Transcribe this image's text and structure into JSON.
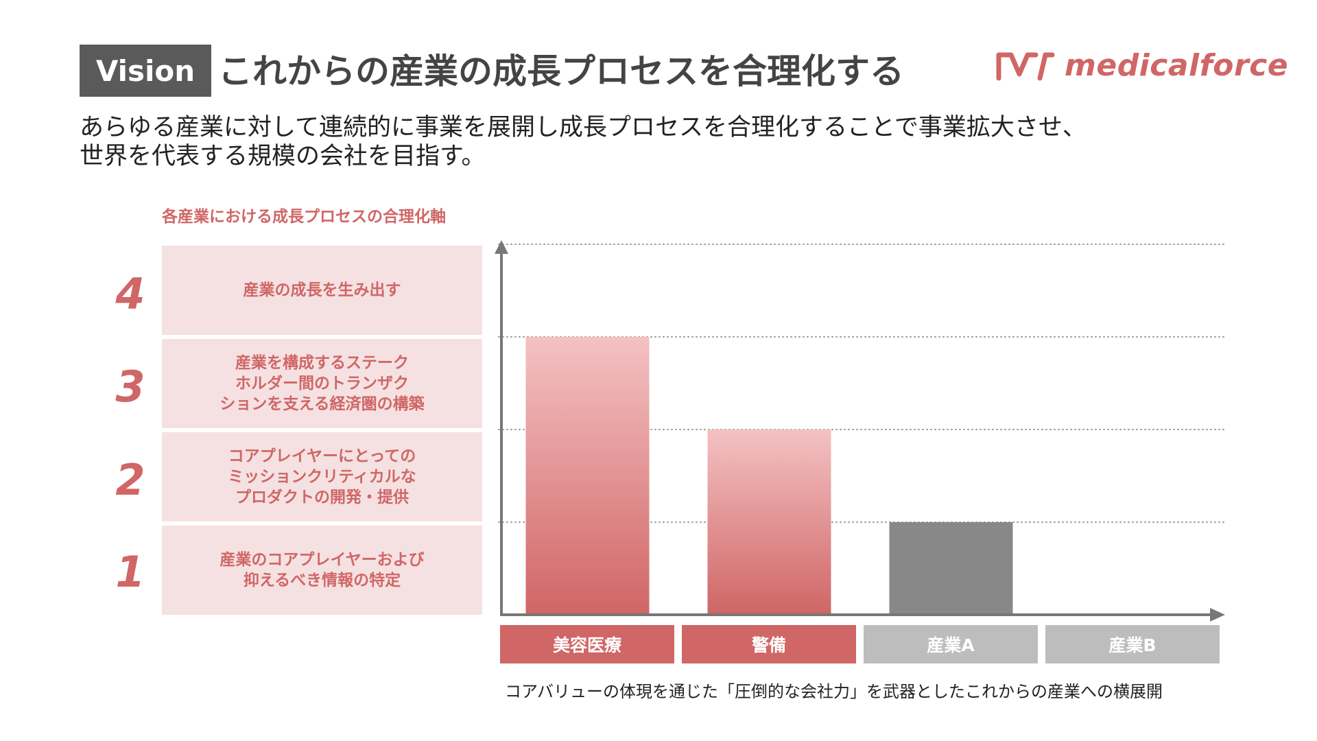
{
  "header": {
    "badge": "Vision",
    "title": "これからの産業の成長プロセスを合理化する",
    "logo_text": "medicalforce"
  },
  "intro": {
    "line1": "あらゆる産業に対して連続的に事業を展開し成長プロセスを合理化することで事業拡大させ、",
    "line2": "世界を代表する規模の会社を目指す。"
  },
  "axis_caption": "各産業における成長プロセスの合理化軸",
  "levels": [
    {
      "number": "4",
      "lines": [
        "産業の成長を生み出す"
      ]
    },
    {
      "number": "3",
      "lines": [
        "産業を構成するステーク",
        "ホルダー間のトランザク",
        "ションを支える経済圏の構築"
      ]
    },
    {
      "number": "2",
      "lines": [
        "コアプレイヤーにとっての",
        "ミッションクリティカルな",
        "プロダクトの開発・提供"
      ]
    },
    {
      "number": "1",
      "lines": [
        "産業のコアプレイヤーおよび",
        "抑えるべき情報の特定"
      ]
    }
  ],
  "chart_data": {
    "type": "bar",
    "categories": [
      "美容医療",
      "警備",
      "産業A",
      "産業B"
    ],
    "values": [
      3,
      2,
      1,
      0
    ],
    "ylim": [
      0,
      4
    ],
    "y_ticks": [
      1,
      2,
      3,
      4
    ],
    "grid": true,
    "grid_style": "dotted",
    "bar_colors": [
      "gradient-red",
      "gradient-red",
      "#888888",
      "none"
    ],
    "label_colors": [
      "#d06666",
      "#d06666",
      "#bdbdbd",
      "#bdbdbd"
    ],
    "footer": "コアバリューの体現を通じた「圧倒的な会社力」を武器としたこれからの産業への横展開"
  },
  "colors": {
    "accent": "#d06666",
    "accent_light": "#f5e1e1",
    "bar_gradient_top": "#f4c2c3",
    "bar_gradient_bottom": "#d06666",
    "gray_bar": "#888888",
    "axis": "#777777"
  }
}
